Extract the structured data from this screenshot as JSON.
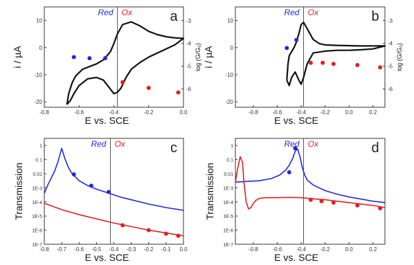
{
  "colors": {
    "red_state": "#1f2bd6",
    "ox_state": "#e02020",
    "cv_curve": "#111111",
    "axes": "#333333"
  },
  "chart_data": [
    {
      "panel": "a",
      "type": "line",
      "region_labels": {
        "left": "Red",
        "right": "Ox"
      },
      "xlabel": "E vs. SCE",
      "ylabel": "i / µA",
      "y2label": "log (G/G₀)",
      "xlim": [
        -0.8,
        0.0
      ],
      "ylim": [
        -22,
        15
      ],
      "y2lim": [
        -6.8,
        -2.4
      ],
      "xticks": [
        "-0.8",
        "-0.6",
        "-0.4",
        "-0.2",
        "0.0"
      ],
      "yticks": [
        "-20",
        "-10",
        "0",
        "10"
      ],
      "y2ticks": [
        "-3",
        "-4",
        "-5",
        "-6"
      ],
      "divider_x": -0.38,
      "series": [
        {
          "axis": "left",
          "x": [
            -0.67,
            -0.66,
            -0.64,
            -0.62,
            -0.58,
            -0.54,
            -0.5,
            -0.46,
            -0.42,
            -0.4,
            -0.38,
            -0.35,
            -0.3,
            -0.25,
            -0.2,
            -0.15,
            -0.1,
            -0.05,
            0.0,
            -0.05,
            -0.1,
            -0.15,
            -0.2,
            -0.25,
            -0.3,
            -0.33,
            -0.36,
            -0.38,
            -0.4,
            -0.43,
            -0.46,
            -0.5,
            -0.55,
            -0.6,
            -0.63,
            -0.65,
            -0.67
          ],
          "y": [
            -21,
            -17,
            -13,
            -10.5,
            -8,
            -7,
            -6,
            -4.5,
            -1.5,
            1.5,
            5,
            8.5,
            9.5,
            8,
            6,
            4.8,
            4,
            3.6,
            3.4,
            1,
            -0.5,
            -2,
            -3.5,
            -5.5,
            -8,
            -11,
            -15,
            -16.5,
            -17,
            -14.5,
            -12,
            -11,
            -11.5,
            -14,
            -17,
            -19.5,
            -21
          ]
        }
      ],
      "points_red": {
        "x": [
          -0.63,
          -0.54,
          -0.45
        ],
        "y2": [
          -4.6,
          -4.65,
          -4.65
        ]
      },
      "points_ox": {
        "x": [
          -0.35,
          -0.2,
          -0.03
        ],
        "y2": [
          -5.7,
          -5.95,
          -6.15
        ]
      }
    },
    {
      "panel": "b",
      "type": "line",
      "region_labels": {
        "left": "Red",
        "right": "Ox"
      },
      "xlabel": "E vs. SCE",
      "ylabel": "i / µA",
      "y2label": "log (G/G₀)",
      "xlim": [
        -0.95,
        0.3
      ],
      "ylim": [
        -22,
        15
      ],
      "y2lim": [
        -6.8,
        -2.4
      ],
      "xticks": [
        "-0.8",
        "-0.6",
        "-0.4",
        "-0.2",
        "0.0",
        "0.2"
      ],
      "yticks": [
        "-20",
        "-10",
        "0",
        "10"
      ],
      "y2ticks": [
        "-3",
        "-4",
        "-5",
        "-6"
      ],
      "divider_x": -0.38,
      "series": [
        {
          "axis": "left",
          "x": [
            -0.52,
            -0.51,
            -0.5,
            -0.48,
            -0.46,
            -0.44,
            -0.42,
            -0.4,
            -0.38,
            -0.35,
            -0.3,
            -0.25,
            -0.2,
            -0.1,
            0.0,
            0.1,
            0.2,
            0.3,
            0.2,
            0.1,
            0.0,
            -0.1,
            -0.2,
            -0.3,
            -0.35,
            -0.38,
            -0.4,
            -0.42,
            -0.45,
            -0.48,
            -0.5,
            -0.51,
            -0.52
          ],
          "y": [
            -12,
            -6,
            -3,
            -1.5,
            0,
            2,
            5,
            8.5,
            9.3,
            7,
            3,
            1.5,
            1,
            0.8,
            0.7,
            0.6,
            0.6,
            0.6,
            -0.5,
            -0.8,
            -1,
            -1,
            -1.3,
            -2,
            -6,
            -11,
            -13.5,
            -12,
            -9,
            -11,
            -14,
            -13,
            -12
          ]
        }
      ],
      "points_red": {
        "x": [
          -0.52,
          -0.44
        ],
        "y2": [
          -4.2,
          -3.85
        ]
      },
      "points_ox": {
        "x": [
          -0.32,
          -0.22,
          -0.13,
          0.07,
          0.26
        ],
        "y2": [
          -4.85,
          -4.85,
          -4.9,
          -4.95,
          -5.05
        ]
      }
    },
    {
      "panel": "c",
      "type": "line",
      "yscale": "log",
      "region_labels": {
        "left": "Red",
        "right": "Ox"
      },
      "xlabel": "E vs. SCE",
      "ylabel": "Transmission",
      "xlim": [
        -0.8,
        0.0
      ],
      "ylim_exp": [
        -7,
        0.5
      ],
      "xticks": [
        "-0.8",
        "-0.7",
        "-0.6",
        "-0.5",
        "-0.4",
        "-0.3",
        "-0.2",
        "-0.1",
        "0.0"
      ],
      "yticks": [
        "1",
        "0.1",
        "0.01",
        "1E-3",
        "1E-4",
        "1E-5",
        "1E-6",
        "1E-7"
      ],
      "divider_x": -0.42,
      "series": [
        {
          "color": "red_state",
          "x": [
            -0.8,
            -0.78,
            -0.76,
            -0.74,
            -0.72,
            -0.7,
            -0.68,
            -0.66,
            -0.64,
            -0.6,
            -0.55,
            -0.5,
            -0.45,
            -0.4,
            -0.35,
            -0.3,
            -0.2,
            -0.1,
            0.0
          ],
          "y_exp": [
            -3.4,
            -2.8,
            -2.3,
            -1.8,
            -1.1,
            -0.2,
            -1.0,
            -1.6,
            -2.0,
            -2.5,
            -2.85,
            -3.1,
            -3.3,
            -3.5,
            -3.7,
            -3.85,
            -4.15,
            -4.4,
            -4.6
          ]
        },
        {
          "color": "ox_state",
          "x": [
            -0.8,
            -0.7,
            -0.6,
            -0.5,
            -0.4,
            -0.3,
            -0.2,
            -0.1,
            0.0
          ],
          "y_exp": [
            -4.1,
            -4.55,
            -4.9,
            -5.2,
            -5.5,
            -5.75,
            -6.0,
            -6.2,
            -6.4
          ]
        }
      ],
      "points_red": {
        "x": [
          -0.63,
          -0.53,
          -0.43
        ],
        "y_exp": [
          -2.05,
          -2.85,
          -3.3
        ]
      },
      "points_ox": {
        "x": [
          -0.35,
          -0.2,
          -0.1,
          -0.03
        ],
        "y_exp": [
          -5.65,
          -6.0,
          -6.25,
          -6.4
        ]
      }
    },
    {
      "panel": "d",
      "type": "line",
      "yscale": "log",
      "region_labels": {
        "left": "Red",
        "right": "Ox"
      },
      "xlabel": "E vs. SCE",
      "ylabel": "Transmission",
      "xlim": [
        -0.95,
        0.3
      ],
      "ylim_exp": [
        -7,
        0.5
      ],
      "xticks": [
        "-0.8",
        "-0.6",
        "-0.4",
        "-0.2",
        "0.0",
        "0.2"
      ],
      "yticks": [
        "1",
        "0.1",
        "0.01",
        "1E-3",
        "1E-4",
        "1E-5",
        "1E-6",
        "1E-7"
      ],
      "divider_x": -0.38,
      "series": [
        {
          "color": "red_state",
          "x": [
            -0.95,
            -0.85,
            -0.75,
            -0.65,
            -0.58,
            -0.53,
            -0.5,
            -0.47,
            -0.45,
            -0.43,
            -0.41,
            -0.39,
            -0.37,
            -0.35,
            -0.3,
            -0.2,
            -0.1,
            0.0,
            0.1,
            0.2,
            0.3
          ],
          "y_exp": [
            -2.6,
            -2.55,
            -2.5,
            -2.35,
            -2.1,
            -1.75,
            -1.4,
            -0.9,
            -0.4,
            -0.25,
            -0.8,
            -1.6,
            -2.1,
            -2.45,
            -2.8,
            -3.2,
            -3.45,
            -3.65,
            -3.8,
            -3.95,
            -4.05
          ]
        },
        {
          "color": "ox_state",
          "x": [
            -0.95,
            -0.93,
            -0.91,
            -0.89,
            -0.88,
            -0.86,
            -0.84,
            -0.82,
            -0.8,
            -0.78,
            -0.75,
            -0.7,
            -0.6,
            -0.5,
            -0.4,
            -0.3,
            -0.2,
            -0.1,
            0.0,
            0.1,
            0.2,
            0.3
          ],
          "y_exp": [
            -2.6,
            -1.6,
            -0.8,
            -1.2,
            -2.5,
            -4.0,
            -4.5,
            -4.4,
            -4.1,
            -3.9,
            -3.75,
            -3.7,
            -3.7,
            -3.68,
            -3.7,
            -3.78,
            -3.85,
            -3.95,
            -4.05,
            -4.15,
            -4.25,
            -4.4
          ]
        }
      ],
      "points_red": {
        "x": [
          -0.5,
          -0.45
        ],
        "y_exp": [
          -1.9,
          -0.2
        ]
      },
      "points_ox": {
        "x": [
          -0.32,
          -0.23,
          -0.13,
          0.07,
          0.26
        ],
        "y_exp": [
          -3.85,
          -3.95,
          -4.05,
          -4.25,
          -4.45
        ]
      }
    }
  ]
}
